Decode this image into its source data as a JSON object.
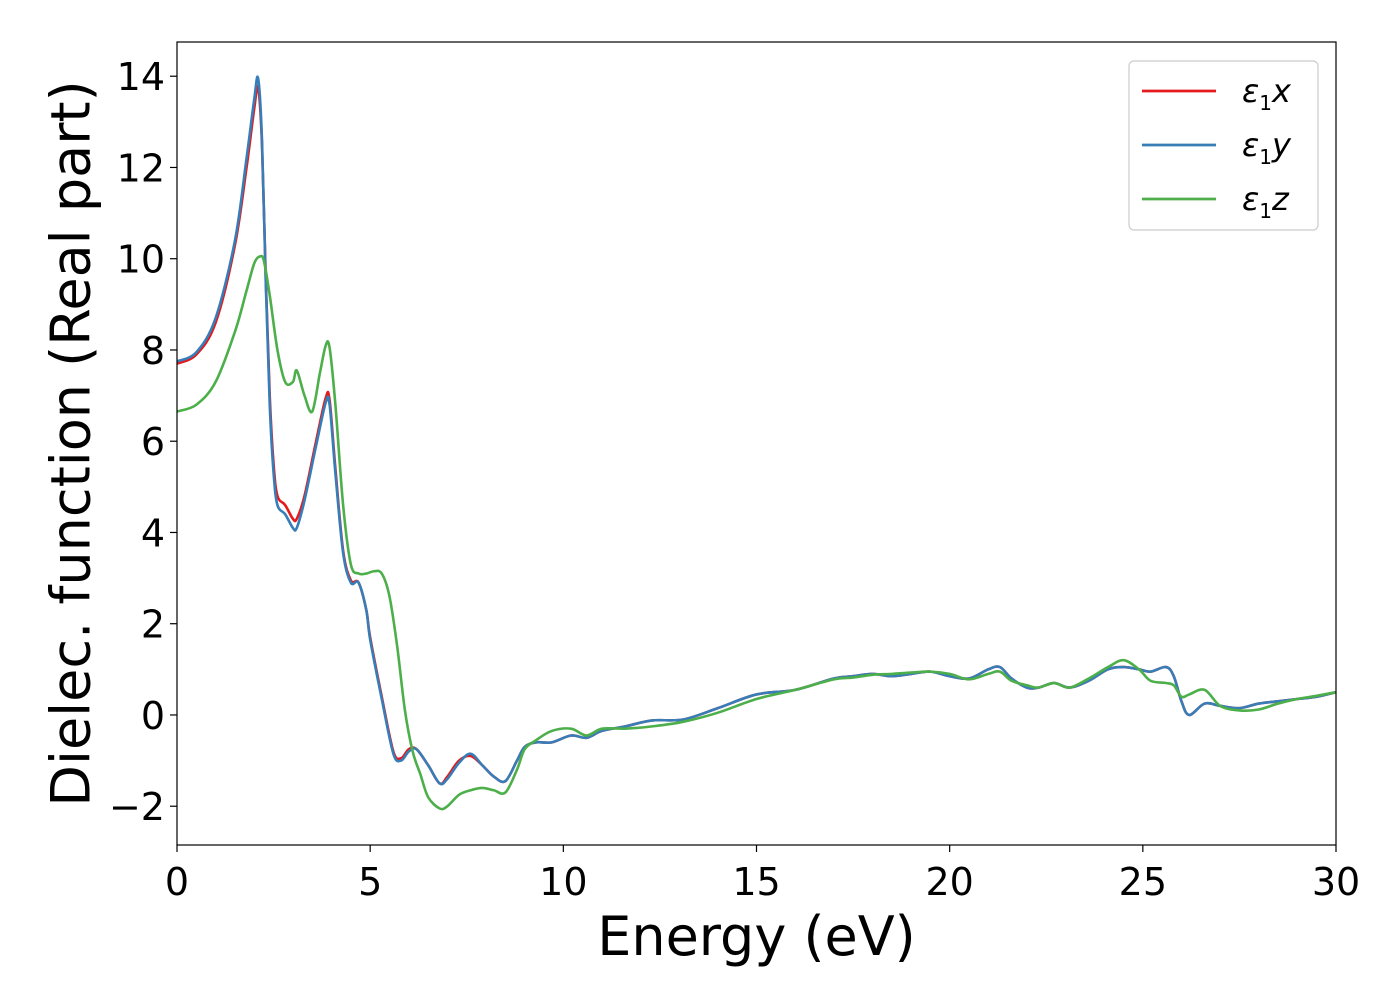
{
  "chart_data": {
    "type": "line",
    "xlabel": "Energy (eV)",
    "ylabel": "Dielec. function (Real part)",
    "xlim": [
      0,
      30
    ],
    "ylim": [
      -2.85,
      14.75
    ],
    "xticks": [
      0,
      5,
      10,
      15,
      20,
      25,
      30
    ],
    "xtick_labels": [
      "0",
      "5",
      "10",
      "15",
      "20",
      "25",
      "30"
    ],
    "yticks": [
      -2,
      0,
      2,
      4,
      6,
      8,
      10,
      12,
      14
    ],
    "ytick_labels": [
      "−2",
      "0",
      "2",
      "4",
      "6",
      "8",
      "10",
      "12",
      "14"
    ],
    "grid": false,
    "legend_position": "top-right",
    "series": [
      {
        "name": "ε1x",
        "legend_symbol": "ε",
        "legend_sub": "1",
        "legend_tail": "x",
        "color": "#e41a1c",
        "x": [
          0,
          0.5,
          1.0,
          1.5,
          1.8,
          2.0,
          2.1,
          2.2,
          2.3,
          2.4,
          2.5,
          2.6,
          2.8,
          3.0,
          3.1,
          3.3,
          3.6,
          3.85,
          3.95,
          4.1,
          4.3,
          4.5,
          4.7,
          4.9,
          5.0,
          5.3,
          5.6,
          5.8,
          6.0,
          6.2,
          6.5,
          6.8,
          7.0,
          7.3,
          7.6,
          7.9,
          8.2,
          8.5,
          8.8,
          9.0,
          9.3,
          9.7,
          10.2,
          10.6,
          11.0,
          11.6,
          12.3,
          13.1,
          14.0,
          15.0,
          16.0,
          17.0,
          17.5,
          18.0,
          18.5,
          19.0,
          19.5,
          20.0,
          20.5,
          21.0,
          21.3,
          21.6,
          22.0,
          22.3,
          22.7,
          23.1,
          23.6,
          24.1,
          24.5,
          24.9,
          25.2,
          25.6,
          25.8,
          26.0,
          26.2,
          26.6,
          27.0,
          27.5,
          28.0,
          28.5,
          29.0,
          29.5,
          30.0
        ],
        "y": [
          7.7,
          7.9,
          8.6,
          10.3,
          12.0,
          13.3,
          13.75,
          12.5,
          9.5,
          7.0,
          5.5,
          4.8,
          4.6,
          4.3,
          4.3,
          4.8,
          6.0,
          6.95,
          6.9,
          5.4,
          3.6,
          2.95,
          2.9,
          2.3,
          1.7,
          0.4,
          -0.8,
          -0.95,
          -0.75,
          -0.75,
          -1.1,
          -1.5,
          -1.35,
          -1.0,
          -0.9,
          -1.1,
          -1.35,
          -1.45,
          -1.0,
          -0.7,
          -0.6,
          -0.6,
          -0.45,
          -0.5,
          -0.35,
          -0.25,
          -0.12,
          -0.1,
          0.15,
          0.45,
          0.55,
          0.8,
          0.85,
          0.9,
          0.85,
          0.9,
          0.95,
          0.85,
          0.8,
          1.0,
          1.05,
          0.8,
          0.6,
          0.6,
          0.7,
          0.6,
          0.75,
          1.0,
          1.05,
          1.0,
          0.95,
          1.05,
          0.85,
          0.3,
          0.0,
          0.25,
          0.2,
          0.15,
          0.25,
          0.3,
          0.35,
          0.4,
          0.5
        ]
      },
      {
        "name": "ε1y",
        "legend_symbol": "ε",
        "legend_sub": "1",
        "legend_tail": "y",
        "color": "#377eb8",
        "x": [
          0,
          0.5,
          1.0,
          1.5,
          1.8,
          2.0,
          2.1,
          2.2,
          2.3,
          2.4,
          2.5,
          2.6,
          2.8,
          3.0,
          3.1,
          3.3,
          3.6,
          3.85,
          3.95,
          4.1,
          4.3,
          4.5,
          4.7,
          4.9,
          5.0,
          5.3,
          5.6,
          5.8,
          6.0,
          6.2,
          6.5,
          6.8,
          7.0,
          7.3,
          7.6,
          7.9,
          8.2,
          8.5,
          8.8,
          9.0,
          9.3,
          9.7,
          10.2,
          10.6,
          11.0,
          11.6,
          12.3,
          13.1,
          14.0,
          15.0,
          16.0,
          17.0,
          17.5,
          18.0,
          18.5,
          19.0,
          19.5,
          20.0,
          20.5,
          21.0,
          21.3,
          21.6,
          22.0,
          22.3,
          22.7,
          23.1,
          23.6,
          24.1,
          24.5,
          24.9,
          25.2,
          25.6,
          25.8,
          26.0,
          26.2,
          26.6,
          27.0,
          27.5,
          28.0,
          28.5,
          29.0,
          29.5,
          30.0
        ],
        "y": [
          7.75,
          7.95,
          8.7,
          10.4,
          12.2,
          13.5,
          13.95,
          12.6,
          9.4,
          6.8,
          5.3,
          4.6,
          4.4,
          4.1,
          4.1,
          4.7,
          5.9,
          6.85,
          6.8,
          5.3,
          3.55,
          2.9,
          2.9,
          2.3,
          1.65,
          0.35,
          -0.85,
          -1.0,
          -0.8,
          -0.75,
          -1.1,
          -1.5,
          -1.4,
          -1.05,
          -0.85,
          -1.1,
          -1.35,
          -1.45,
          -1.0,
          -0.7,
          -0.6,
          -0.6,
          -0.45,
          -0.5,
          -0.35,
          -0.25,
          -0.12,
          -0.1,
          0.15,
          0.45,
          0.55,
          0.8,
          0.85,
          0.9,
          0.85,
          0.9,
          0.95,
          0.85,
          0.8,
          1.0,
          1.05,
          0.8,
          0.6,
          0.6,
          0.7,
          0.6,
          0.75,
          1.0,
          1.05,
          1.0,
          0.95,
          1.05,
          0.85,
          0.3,
          0.0,
          0.25,
          0.2,
          0.15,
          0.25,
          0.3,
          0.35,
          0.4,
          0.5
        ]
      },
      {
        "name": "ε1z",
        "legend_symbol": "ε",
        "legend_sub": "1",
        "legend_tail": "z",
        "color": "#4daf4a",
        "x": [
          0,
          0.5,
          1.0,
          1.5,
          1.8,
          2.0,
          2.15,
          2.25,
          2.4,
          2.6,
          2.8,
          3.0,
          3.1,
          3.3,
          3.5,
          3.7,
          3.85,
          3.95,
          4.1,
          4.3,
          4.5,
          4.7,
          4.9,
          5.1,
          5.3,
          5.5,
          5.7,
          5.9,
          6.1,
          6.3,
          6.5,
          6.8,
          7.0,
          7.3,
          7.6,
          7.9,
          8.2,
          8.5,
          8.8,
          9.0,
          9.3,
          9.7,
          10.2,
          10.6,
          11.0,
          11.6,
          12.3,
          13.1,
          14.0,
          15.0,
          16.0,
          17.0,
          17.5,
          18.0,
          18.5,
          19.0,
          19.5,
          20.0,
          20.5,
          21.0,
          21.3,
          21.6,
          22.0,
          22.3,
          22.7,
          23.1,
          23.6,
          24.1,
          24.5,
          24.9,
          25.2,
          25.6,
          25.8,
          26.0,
          26.2,
          26.6,
          27.0,
          27.5,
          28.0,
          28.5,
          29.0,
          29.5,
          30.0
        ],
        "y": [
          6.65,
          6.8,
          7.3,
          8.4,
          9.3,
          9.9,
          10.05,
          9.95,
          9.2,
          8.0,
          7.3,
          7.3,
          7.55,
          7.0,
          6.65,
          7.5,
          8.1,
          8.05,
          6.8,
          4.6,
          3.3,
          3.1,
          3.1,
          3.15,
          3.1,
          2.6,
          1.5,
          0.1,
          -0.8,
          -1.3,
          -1.8,
          -2.05,
          -2.0,
          -1.75,
          -1.65,
          -1.6,
          -1.65,
          -1.7,
          -1.2,
          -0.75,
          -0.55,
          -0.35,
          -0.3,
          -0.45,
          -0.3,
          -0.3,
          -0.25,
          -0.15,
          0.05,
          0.35,
          0.55,
          0.78,
          0.82,
          0.88,
          0.9,
          0.93,
          0.95,
          0.9,
          0.78,
          0.9,
          0.95,
          0.75,
          0.65,
          0.6,
          0.7,
          0.6,
          0.8,
          1.05,
          1.2,
          1.0,
          0.75,
          0.7,
          0.65,
          0.4,
          0.45,
          0.55,
          0.2,
          0.1,
          0.12,
          0.25,
          0.35,
          0.42,
          0.5
        ]
      }
    ]
  }
}
